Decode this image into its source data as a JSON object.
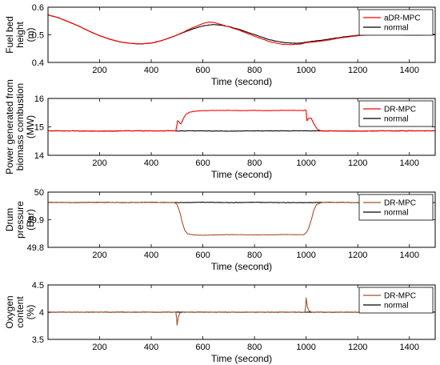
{
  "chart_data": [
    {
      "type": "line",
      "xlabel": "Time (second)",
      "ylabel": [
        "Fuel bed",
        "height",
        "(m)"
      ],
      "xlim": [
        0,
        1500
      ],
      "ylim": [
        0.4,
        0.6
      ],
      "xticks": [
        200,
        400,
        600,
        800,
        1000,
        1200,
        1400
      ],
      "yticks": [
        0.4,
        0.5,
        0.6
      ],
      "ytick_labels": [
        "0.4",
        "0.5",
        "0.6"
      ],
      "legend_position": "top-right",
      "series": [
        {
          "name": "aDR-MPC",
          "color": "#ff0000",
          "x": [
            0,
            40,
            80,
            120,
            160,
            200,
            240,
            280,
            320,
            360,
            400,
            440,
            480,
            500,
            520,
            560,
            600,
            620,
            640,
            660,
            700,
            740,
            780,
            820,
            860,
            900,
            940,
            980,
            1000,
            1040,
            1080,
            1120,
            1160,
            1200,
            1240,
            1280,
            1320,
            1360,
            1400,
            1440,
            1480,
            1500
          ],
          "y": [
            0.572,
            0.562,
            0.547,
            0.531,
            0.513,
            0.497,
            0.484,
            0.474,
            0.469,
            0.467,
            0.47,
            0.479,
            0.492,
            0.499,
            0.508,
            0.526,
            0.541,
            0.546,
            0.545,
            0.54,
            0.529,
            0.517,
            0.502,
            0.488,
            0.475,
            0.467,
            0.464,
            0.467,
            0.472,
            0.475,
            0.48,
            0.487,
            0.492,
            0.497,
            0.5,
            0.502,
            0.503,
            0.502,
            0.5,
            0.5,
            0.501,
            0.502
          ]
        },
        {
          "name": "normal",
          "color": "#000000",
          "x": [
            0,
            40,
            80,
            120,
            160,
            200,
            240,
            280,
            320,
            360,
            400,
            440,
            480,
            500,
            520,
            560,
            600,
            620,
            640,
            660,
            700,
            740,
            780,
            820,
            860,
            900,
            940,
            980,
            1000,
            1040,
            1080,
            1120,
            1160,
            1200,
            1240,
            1280,
            1320,
            1360,
            1400,
            1440,
            1480,
            1500
          ],
          "y": [
            0.572,
            0.562,
            0.547,
            0.531,
            0.513,
            0.497,
            0.484,
            0.474,
            0.469,
            0.467,
            0.47,
            0.479,
            0.492,
            0.499,
            0.507,
            0.521,
            0.532,
            0.535,
            0.537,
            0.536,
            0.53,
            0.52,
            0.507,
            0.494,
            0.482,
            0.474,
            0.47,
            0.47,
            0.474,
            0.478,
            0.483,
            0.489,
            0.494,
            0.498,
            0.501,
            0.502,
            0.502,
            0.501,
            0.499,
            0.499,
            0.5,
            0.501
          ]
        }
      ]
    },
    {
      "type": "line",
      "xlabel": "Time (second)",
      "ylabel": [
        "Power generated from",
        "biomass combustion",
        "(MW)"
      ],
      "xlim": [
        0,
        1500
      ],
      "ylim": [
        14,
        16
      ],
      "xticks": [
        200,
        400,
        600,
        800,
        1000,
        1200,
        1400
      ],
      "yticks": [
        14,
        15,
        16
      ],
      "ytick_labels": [
        "14",
        "15",
        "16"
      ],
      "legend_position": "top-right",
      "series": [
        {
          "name": "DR-MPC",
          "color": "#ff0000",
          "x": [
            0,
            100,
            200,
            300,
            400,
            495,
            500,
            502,
            515,
            525,
            535,
            550,
            570,
            600,
            650,
            700,
            750,
            800,
            850,
            900,
            950,
            990,
            998,
            1000,
            1003,
            1010,
            1020,
            1030,
            1045,
            1060,
            1100,
            1200,
            1300,
            1400,
            1500
          ],
          "y": [
            14.86,
            14.86,
            14.85,
            14.86,
            14.86,
            14.86,
            15.1,
            15.22,
            15.1,
            15.3,
            15.45,
            15.52,
            15.55,
            15.57,
            15.58,
            15.58,
            15.57,
            15.58,
            15.57,
            15.58,
            15.58,
            15.57,
            15.6,
            15.55,
            15.22,
            15.3,
            15.3,
            15.1,
            14.9,
            14.85,
            14.86,
            14.85,
            14.86,
            14.86,
            14.86
          ]
        },
        {
          "name": "normal",
          "color": "#000000",
          "x": [
            0,
            100,
            200,
            300,
            400,
            500,
            600,
            700,
            800,
            900,
            1000,
            1100,
            1200,
            1300,
            1400,
            1500
          ],
          "y": [
            14.86,
            14.86,
            14.85,
            14.86,
            14.86,
            14.86,
            14.86,
            14.85,
            14.86,
            14.86,
            14.86,
            14.86,
            14.85,
            14.86,
            14.86,
            14.86
          ]
        }
      ]
    },
    {
      "type": "line",
      "xlabel": "Time (second)",
      "ylabel": [
        "Drum",
        "pressure",
        "(Bar)"
      ],
      "xlim": [
        0,
        1500
      ],
      "ylim": [
        49.8,
        50
      ],
      "xticks": [
        200,
        400,
        600,
        800,
        1000,
        1200,
        1400
      ],
      "yticks": [
        49.8,
        49.9,
        50
      ],
      "ytick_labels": [
        "49.8",
        "49.9",
        "50"
      ],
      "legend_position": "top-right",
      "series": [
        {
          "name": "DR-MPC",
          "color": "#a0522d",
          "x": [
            0,
            100,
            200,
            300,
            400,
            490,
            500,
            510,
            520,
            530,
            540,
            560,
            600,
            700,
            800,
            900,
            990,
            1000,
            1010,
            1020,
            1030,
            1040,
            1060,
            1100,
            1200,
            1300,
            1400,
            1500
          ],
          "y": [
            49.963,
            49.962,
            49.963,
            49.962,
            49.963,
            49.962,
            49.955,
            49.93,
            49.89,
            49.862,
            49.85,
            49.845,
            49.844,
            49.846,
            49.845,
            49.846,
            49.846,
            49.852,
            49.87,
            49.9,
            49.935,
            49.955,
            49.962,
            49.963,
            49.962,
            49.963,
            49.962,
            49.962
          ]
        },
        {
          "name": "normal",
          "color": "#000000",
          "x": [
            0,
            100,
            200,
            300,
            400,
            500,
            600,
            700,
            800,
            900,
            1000,
            1100,
            1200,
            1300,
            1400,
            1500
          ],
          "y": [
            49.963,
            49.962,
            49.963,
            49.962,
            49.963,
            49.962,
            49.963,
            49.962,
            49.963,
            49.962,
            49.962,
            49.963,
            49.962,
            49.963,
            49.962,
            49.962
          ]
        }
      ]
    },
    {
      "type": "line",
      "xlabel": "Time (second)",
      "ylabel": [
        "Oxygen",
        "content",
        "(%)"
      ],
      "xlim": [
        0,
        1500
      ],
      "ylim": [
        3.5,
        4.5
      ],
      "xticks": [
        200,
        400,
        600,
        800,
        1000,
        1200,
        1400
      ],
      "yticks": [
        3.5,
        4,
        4.5
      ],
      "ytick_labels": [
        "3.5",
        "4",
        "4.5"
      ],
      "legend_position": "top-right",
      "series": [
        {
          "name": "DR-MPC",
          "color": "#a0522d",
          "x": [
            0,
            100,
            200,
            300,
            400,
            495,
            498,
            500,
            502,
            505,
            510,
            520,
            600,
            700,
            800,
            900,
            995,
            998,
            1000,
            1002,
            1005,
            1010,
            1020,
            1100,
            1200,
            1300,
            1400,
            1500
          ],
          "y": [
            4.0,
            4.0,
            4.0,
            4.0,
            4.0,
            4.0,
            3.9,
            3.76,
            3.82,
            3.92,
            3.98,
            4.0,
            4.0,
            4.0,
            4.0,
            4.0,
            4.0,
            4.1,
            4.26,
            4.2,
            4.1,
            4.03,
            4.0,
            4.0,
            4.0,
            4.0,
            4.0,
            4.0
          ]
        },
        {
          "name": "normal",
          "color": "#000000",
          "x": [
            0,
            500,
            1000,
            1500
          ],
          "y": [
            4.0,
            4.0,
            4.0,
            4.0
          ]
        }
      ]
    }
  ]
}
